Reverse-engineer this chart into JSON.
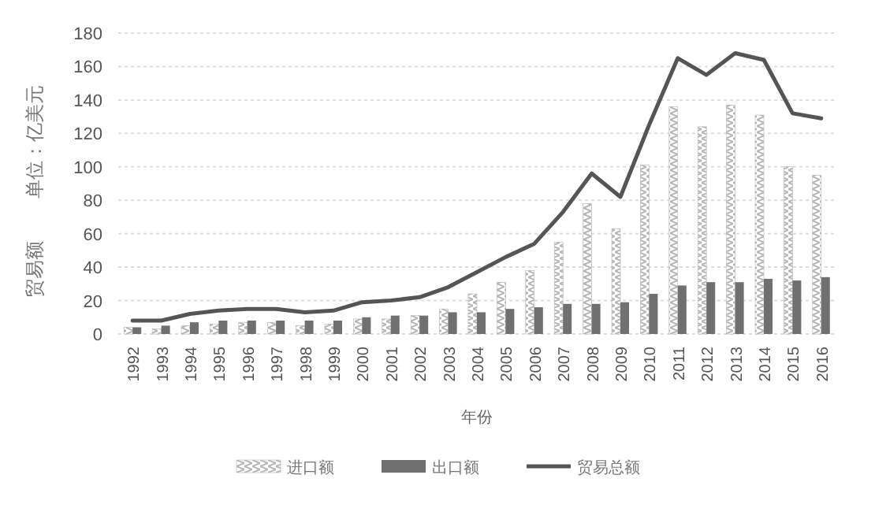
{
  "chart_data": {
    "type": "bar",
    "xlabel": "年份",
    "ylabel": "贸易额        单位：亿美元",
    "categories": [
      "1992",
      "1993",
      "1994",
      "1995",
      "1996",
      "1997",
      "1998",
      "1999",
      "2000",
      "2001",
      "2002",
      "2003",
      "2004",
      "2005",
      "2006",
      "2007",
      "2008",
      "2009",
      "2010",
      "2011",
      "2012",
      "2013",
      "2014",
      "2015",
      "2016"
    ],
    "series": [
      {
        "name": "进口额",
        "color": "#b5b5b5",
        "values": [
          4,
          3,
          5,
          6,
          7,
          7,
          5,
          6,
          9,
          9,
          11,
          15,
          24,
          31,
          38,
          55,
          78,
          63,
          101,
          136,
          124,
          137,
          131,
          100,
          95
        ]
      },
      {
        "name": "出口额",
        "color": "#707070",
        "values": [
          4,
          5,
          7,
          8,
          8,
          8,
          8,
          8,
          10,
          11,
          11,
          13,
          13,
          15,
          16,
          18,
          18,
          19,
          24,
          29,
          31,
          31,
          33,
          32,
          34
        ]
      },
      {
        "name": "贸易总额",
        "type": "line",
        "color": "#555555",
        "values": [
          8,
          8,
          12,
          14,
          15,
          15,
          13,
          14,
          19,
          20,
          22,
          28,
          37,
          46,
          54,
          73,
          96,
          82,
          125,
          165,
          155,
          168,
          164,
          132,
          129
        ]
      }
    ],
    "ylim": [
      0,
      180
    ],
    "yticks": [
      0,
      20,
      40,
      60,
      80,
      100,
      120,
      140,
      160,
      180
    ],
    "grid": "y",
    "legend": "bottom"
  }
}
